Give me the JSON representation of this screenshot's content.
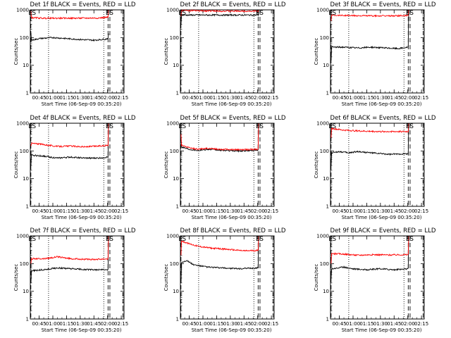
{
  "window": {
    "title": ""
  },
  "chart_data": [
    {
      "type": "line",
      "title": "Det 1f BLACK = Events, RED = LLD",
      "xlabel": "Start Time (06-Sep-09 00:35:20)",
      "ylabel": "Counts/sec",
      "xticks": [
        "00:45",
        "01:00",
        "01:15",
        "01:30",
        "01:45",
        "02:00",
        "02:15"
      ],
      "yticks": [
        "1",
        "10",
        "100",
        "1000"
      ],
      "ylog": true,
      "xlim_min": [
        35.3,
        138
      ],
      "ylim": [
        1,
        1000
      ],
      "markers": {
        "E": 35.9,
        "S1": 36.4,
        "E2": 120.5,
        "S2": 121.2
      },
      "dotted_x": [
        55.3,
        115.8
      ],
      "dashed_x": [
        122.5,
        136.8
      ],
      "series": [
        {
          "name": "BLACK = Events",
          "color": "#000000",
          "start_spike": 150,
          "knots": [
            [
              36.5,
              80
            ],
            [
              45,
              92
            ],
            [
              60,
              100
            ],
            [
              75,
              92
            ],
            [
              90,
              85
            ],
            [
              105,
              80
            ],
            [
              118,
              88
            ],
            [
              120.8,
              95
            ]
          ],
          "end_val": 140
        },
        {
          "name": "RED = LLD",
          "color": "#ff0000",
          "start_spike": 900,
          "knots": [
            [
              36.5,
              520
            ],
            [
              50,
              500
            ],
            [
              70,
              500
            ],
            [
              90,
              500
            ],
            [
              110,
              510
            ],
            [
              120.8,
              540
            ]
          ],
          "end_val": 1000
        }
      ]
    },
    {
      "type": "line",
      "title": "Det 2f BLACK = Events, RED = LLD",
      "xlabel": "Start Time (06-Sep-09 00:35:20)",
      "ylabel": "Counts/sec",
      "xticks": [
        "00:45",
        "01:00",
        "01:15",
        "01:30",
        "01:45",
        "02:00",
        "02:15"
      ],
      "yticks": [
        "1",
        "10",
        "100",
        "1000"
      ],
      "ylog": true,
      "xlim_min": [
        35.3,
        138
      ],
      "ylim": [
        1,
        1000
      ],
      "markers": {
        "E": 35.9,
        "S1": 36.4,
        "E2": 120.5,
        "S2": 121.2
      },
      "dotted_x": [
        55.3,
        115.8
      ],
      "dashed_x": [
        122.5,
        136.8
      ],
      "series": [
        {
          "name": "BLACK = Events",
          "color": "#000000",
          "start_spike": 300,
          "knots": [
            [
              36.5,
              650
            ],
            [
              60,
              650
            ],
            [
              90,
              650
            ],
            [
              120.8,
              650
            ]
          ],
          "end_val": 1000
        },
        {
          "name": "RED = LLD",
          "color": "#ff0000",
          "start_spike": 600,
          "knots": [
            [
              36.5,
              950
            ],
            [
              60,
              920
            ],
            [
              90,
              900
            ],
            [
              120.8,
              900
            ]
          ],
          "end_val": 1000
        }
      ]
    },
    {
      "type": "line",
      "title": "Det 3f BLACK = Events, RED = LLD",
      "xlabel": "Start Time (06-Sep-09 00:35:20)",
      "ylabel": "Counts/sec",
      "xticks": [
        "00:45",
        "01:00",
        "01:15",
        "01:30",
        "01:45",
        "02:00",
        "02:15"
      ],
      "yticks": [
        "1",
        "10",
        "100",
        "1000"
      ],
      "ylog": true,
      "xlim_min": [
        35.3,
        138
      ],
      "ylim": [
        1,
        1000
      ],
      "markers": {
        "E": 35.9,
        "S1": 36.4,
        "E2": 120.5,
        "S2": 121.2
      },
      "dotted_x": [
        55.3,
        115.8
      ],
      "dashed_x": [
        122.5,
        136.8
      ],
      "series": [
        {
          "name": "BLACK = Events",
          "color": "#000000",
          "start_spike": 15,
          "knots": [
            [
              36.5,
              45
            ],
            [
              50,
              45
            ],
            [
              65,
              42
            ],
            [
              80,
              45
            ],
            [
              95,
              42
            ],
            [
              110,
              40
            ],
            [
              120.8,
              45
            ]
          ],
          "end_val": 1000
        },
        {
          "name": "RED = LLD",
          "color": "#ff0000",
          "start_spike": 400,
          "knots": [
            [
              36.5,
              650
            ],
            [
              60,
              620
            ],
            [
              90,
              600
            ],
            [
              120.8,
              620
            ]
          ],
          "end_val": 1000
        }
      ]
    },
    {
      "type": "line",
      "title": "Det 4f BLACK = Events, RED = LLD",
      "xlabel": "Start Time (06-Sep-09 00:35:20)",
      "ylabel": "Counts/sec",
      "xticks": [
        "00:45",
        "01:00",
        "01:15",
        "01:30",
        "01:45",
        "02:00",
        "02:15"
      ],
      "yticks": [
        "1",
        "10",
        "100",
        "1000"
      ],
      "ylog": true,
      "xlim_min": [
        35.3,
        138
      ],
      "ylim": [
        1,
        1000
      ],
      "markers": {
        "E": 35.9,
        "S1": 36.4,
        "E2": 120.5,
        "S2": 121.2
      },
      "dotted_x": [
        55.3,
        115.8
      ],
      "dashed_x": [
        122.5,
        136.8
      ],
      "series": [
        {
          "name": "BLACK = Events",
          "color": "#000000",
          "start_spike": 30,
          "knots": [
            [
              36.5,
              70
            ],
            [
              50,
              65
            ],
            [
              65,
              55
            ],
            [
              80,
              60
            ],
            [
              95,
              55
            ],
            [
              110,
              55
            ],
            [
              120.8,
              60
            ]
          ],
          "end_val": 1000
        },
        {
          "name": "RED = LLD",
          "color": "#ff0000",
          "start_spike": 150,
          "knots": [
            [
              36.5,
              190
            ],
            [
              50,
              170
            ],
            [
              65,
              145
            ],
            [
              80,
              150
            ],
            [
              95,
              140
            ],
            [
              110,
              150
            ],
            [
              120.8,
              160
            ]
          ],
          "end_val": 1000
        }
      ]
    },
    {
      "type": "line",
      "title": "Det 5f BLACK = Events, RED = LLD",
      "xlabel": "Start Time (06-Sep-09 00:35:20)",
      "ylabel": "Counts/sec",
      "xticks": [
        "00:45",
        "01:00",
        "01:15",
        "01:30",
        "01:45",
        "02:00",
        "02:15"
      ],
      "yticks": [
        "1",
        "10",
        "100",
        "1000"
      ],
      "ylog": true,
      "xlim_min": [
        35.3,
        138
      ],
      "ylim": [
        1,
        1000
      ],
      "markers": {
        "E": 35.9,
        "S1": 36.4,
        "E2": 120.5,
        "S2": 121.2
      },
      "dotted_x": [
        55.3,
        115.8
      ],
      "dashed_x": [
        122.5,
        136.8
      ],
      "series": [
        {
          "name": "BLACK = Events",
          "color": "#000000",
          "start_spike": 300,
          "knots": [
            [
              36.5,
              140
            ],
            [
              45,
              115
            ],
            [
              55,
              105
            ],
            [
              65,
              115
            ],
            [
              80,
              105
            ],
            [
              100,
              100
            ],
            [
              120.8,
              105
            ]
          ],
          "end_val": 1000
        },
        {
          "name": "RED = LLD",
          "color": "#ff0000",
          "start_spike": 400,
          "knots": [
            [
              36.5,
              160
            ],
            [
              45,
              130
            ],
            [
              55,
              115
            ],
            [
              65,
              125
            ],
            [
              80,
              115
            ],
            [
              100,
              110
            ],
            [
              120.8,
              115
            ]
          ],
          "end_val": 1000
        }
      ]
    },
    {
      "type": "line",
      "title": "Det 6f BLACK = Events, RED = LLD",
      "xlabel": "Start Time (06-Sep-09 00:35:20)",
      "ylabel": "Counts/sec",
      "xticks": [
        "00:45",
        "01:00",
        "01:15",
        "01:30",
        "01:45",
        "02:00",
        "02:15"
      ],
      "yticks": [
        "1",
        "10",
        "100",
        "1000"
      ],
      "ylog": true,
      "xlim_min": [
        35.3,
        138
      ],
      "ylim": [
        1,
        1000
      ],
      "markers": {
        "E": 35.9,
        "S1": 36.4,
        "E2": 120.5,
        "S2": 121.2
      },
      "dotted_x": [
        55.3,
        115.8
      ],
      "dashed_x": [
        122.5,
        136.8
      ],
      "series": [
        {
          "name": "BLACK = Events",
          "color": "#000000",
          "start_spike": 30,
          "knots": [
            [
              36.5,
              85
            ],
            [
              45,
              95
            ],
            [
              55,
              85
            ],
            [
              65,
              95
            ],
            [
              80,
              85
            ],
            [
              100,
              75
            ],
            [
              120.8,
              80
            ]
          ],
          "end_val": 1000
        },
        {
          "name": "RED = LLD",
          "color": "#ff0000",
          "start_spike": 300,
          "knots": [
            [
              36.5,
              650
            ],
            [
              50,
              560
            ],
            [
              70,
              520
            ],
            [
              90,
              500
            ],
            [
              120.8,
              500
            ]
          ],
          "end_val": 1000
        }
      ]
    },
    {
      "type": "line",
      "title": "Det 7f BLACK = Events, RED = LLD",
      "xlabel": "Start Time (06-Sep-09 00:35:20)",
      "ylabel": "Counts/sec",
      "xticks": [
        "00:45",
        "01:00",
        "01:15",
        "01:30",
        "01:45",
        "02:00",
        "02:15"
      ],
      "yticks": [
        "1",
        "10",
        "100",
        "1000"
      ],
      "ylog": true,
      "xlim_min": [
        35.3,
        138
      ],
      "ylim": [
        1,
        1000
      ],
      "markers": {
        "E": 35.9,
        "S1": 36.4,
        "E2": 120.5,
        "S2": 121.2
      },
      "dotted_x": [
        55.3,
        115.8
      ],
      "dashed_x": [
        122.5,
        136.8
      ],
      "series": [
        {
          "name": "BLACK = Events",
          "color": "#000000",
          "start_spike": 20,
          "knots": [
            [
              36.5,
              55
            ],
            [
              50,
              60
            ],
            [
              65,
              70
            ],
            [
              80,
              65
            ],
            [
              100,
              60
            ],
            [
              120.8,
              60
            ]
          ],
          "end_val": 1000
        },
        {
          "name": "RED = LLD",
          "color": "#ff0000",
          "start_spike": 100,
          "knots": [
            [
              36.5,
              150
            ],
            [
              50,
              150
            ],
            [
              65,
              175
            ],
            [
              80,
              150
            ],
            [
              100,
              140
            ],
            [
              120.8,
              150
            ]
          ],
          "end_val": 1000
        }
      ]
    },
    {
      "type": "line",
      "title": "Det 8f BLACK = Events, RED = LLD",
      "xlabel": "Start Time (06-Sep-09 00:35:20)",
      "ylabel": "Counts/sec",
      "xticks": [
        "00:45",
        "01:00",
        "01:15",
        "01:30",
        "01:45",
        "02:00",
        "02:15"
      ],
      "yticks": [
        "1",
        "10",
        "100",
        "1000"
      ],
      "ylog": true,
      "xlim_min": [
        35.3,
        138
      ],
      "ylim": [
        1,
        1000
      ],
      "markers": {
        "E": 35.9,
        "S1": 36.4,
        "E2": 120.5,
        "S2": 121.2
      },
      "dotted_x": [
        55.3,
        115.8
      ],
      "dashed_x": [
        122.5,
        136.8
      ],
      "series": [
        {
          "name": "BLACK = Events",
          "color": "#000000",
          "start_spike": 20,
          "knots": [
            [
              36.5,
              110
            ],
            [
              42,
              130
            ],
            [
              50,
              90
            ],
            [
              65,
              75
            ],
            [
              80,
              70
            ],
            [
              100,
              65
            ],
            [
              120.8,
              70
            ]
          ],
          "end_val": 1000
        },
        {
          "name": "RED = LLD",
          "color": "#ff0000",
          "start_spike": 200,
          "knots": [
            [
              36.5,
              650
            ],
            [
              45,
              520
            ],
            [
              55,
              420
            ],
            [
              70,
              360
            ],
            [
              90,
              320
            ],
            [
              105,
              290
            ],
            [
              120.8,
              300
            ]
          ],
          "end_val": 1000
        }
      ]
    },
    {
      "type": "line",
      "title": "Det 9f BLACK = Events, RED = LLD",
      "xlabel": "Start Time (06-Sep-09 00:35:20)",
      "ylabel": "Counts/sec",
      "xticks": [
        "00:45",
        "01:00",
        "01:15",
        "01:30",
        "01:45",
        "02:00",
        "02:15"
      ],
      "yticks": [
        "1",
        "10",
        "100",
        "1000"
      ],
      "ylog": true,
      "xlim_min": [
        35.3,
        138
      ],
      "ylim": [
        1,
        1000
      ],
      "markers": {
        "E": 35.9,
        "S1": 36.4,
        "E2": 120.5,
        "S2": 121.2
      },
      "dotted_x": [
        55.3,
        115.8
      ],
      "dashed_x": [
        122.5,
        136.8
      ],
      "series": [
        {
          "name": "BLACK = Events",
          "color": "#000000",
          "start_spike": 30,
          "knots": [
            [
              36.5,
              65
            ],
            [
              50,
              75
            ],
            [
              60,
              65
            ],
            [
              75,
              60
            ],
            [
              90,
              65
            ],
            [
              105,
              60
            ],
            [
              120.8,
              65
            ]
          ],
          "end_val": 1000
        },
        {
          "name": "RED = LLD",
          "color": "#ff0000",
          "start_spike": 100,
          "knots": [
            [
              36.5,
              230
            ],
            [
              50,
              220
            ],
            [
              65,
              200
            ],
            [
              80,
              210
            ],
            [
              100,
              205
            ],
            [
              120.8,
              210
            ]
          ],
          "end_val": 1000
        }
      ]
    }
  ],
  "marker_labels": {
    "start": "S",
    "end": "E"
  }
}
